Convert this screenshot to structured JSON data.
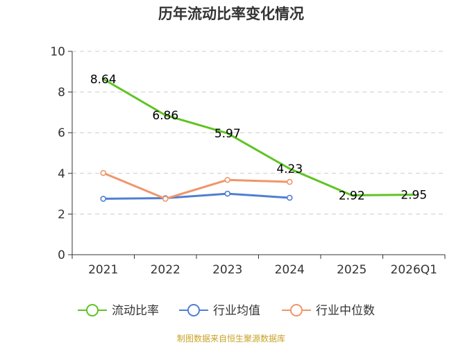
{
  "chart_data": {
    "type": "line",
    "title": "历年流动比率变化情况",
    "categories": [
      "2021",
      "2022",
      "2023",
      "2024",
      "2025",
      "2026Q1"
    ],
    "ylim": [
      0,
      10
    ],
    "yticks": [
      "0",
      "2",
      "4",
      "6",
      "8",
      "10"
    ],
    "grid": true,
    "legend_position": "bottom",
    "series": [
      {
        "name": "流动比率",
        "color": "#5ec423",
        "values": [
          8.64,
          6.86,
          5.97,
          4.23,
          2.92,
          2.95
        ],
        "labels": [
          "8.64",
          "6.86",
          "5.97",
          "4.23",
          "2.92",
          "2.95"
        ],
        "show_labels": true,
        "show_markers": false
      },
      {
        "name": "行业均值",
        "color": "#4f7fd1",
        "values": [
          2.75,
          2.78,
          3.0,
          2.8,
          null,
          null
        ],
        "show_labels": false,
        "show_markers": true
      },
      {
        "name": "行业中位数",
        "color": "#f0956a",
        "values": [
          4.02,
          2.75,
          3.68,
          3.58,
          null,
          null
        ],
        "show_labels": false,
        "show_markers": true
      }
    ],
    "source": "制图数据来自恒生聚源数据库"
  }
}
